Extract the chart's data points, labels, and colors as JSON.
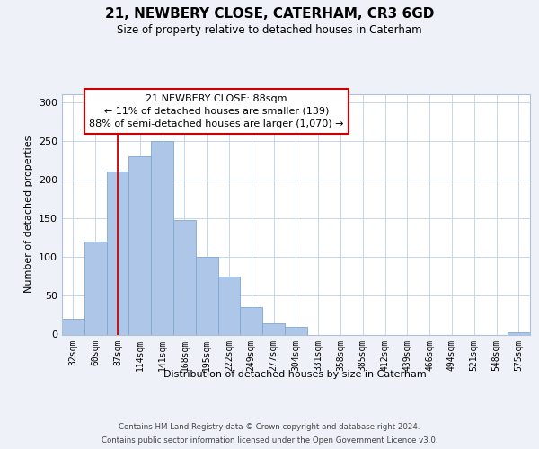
{
  "title": "21, NEWBERY CLOSE, CATERHAM, CR3 6GD",
  "subtitle": "Size of property relative to detached houses in Caterham",
  "xlabel": "Distribution of detached houses by size in Caterham",
  "ylabel": "Number of detached properties",
  "bar_labels": [
    "32sqm",
    "60sqm",
    "87sqm",
    "114sqm",
    "141sqm",
    "168sqm",
    "195sqm",
    "222sqm",
    "249sqm",
    "277sqm",
    "304sqm",
    "331sqm",
    "358sqm",
    "385sqm",
    "412sqm",
    "439sqm",
    "466sqm",
    "494sqm",
    "521sqm",
    "548sqm",
    "575sqm"
  ],
  "bar_values": [
    20,
    120,
    210,
    230,
    250,
    148,
    100,
    75,
    35,
    15,
    10,
    0,
    0,
    0,
    0,
    0,
    0,
    0,
    0,
    0,
    3
  ],
  "bar_color": "#aec6e8",
  "bar_edge_color": "#7fa8d0",
  "marker_index": 2,
  "marker_color": "#cc0000",
  "ylim": [
    0,
    310
  ],
  "yticks": [
    0,
    50,
    100,
    150,
    200,
    250,
    300
  ],
  "annotation_title": "21 NEWBERY CLOSE: 88sqm",
  "annotation_line1": "← 11% of detached houses are smaller (139)",
  "annotation_line2": "88% of semi-detached houses are larger (1,070) →",
  "footer_line1": "Contains HM Land Registry data © Crown copyright and database right 2024.",
  "footer_line2": "Contains public sector information licensed under the Open Government Licence v3.0.",
  "bg_color": "#eef2f8",
  "plot_bg_color": "#ffffff",
  "grid_color": "#c8d4e8"
}
